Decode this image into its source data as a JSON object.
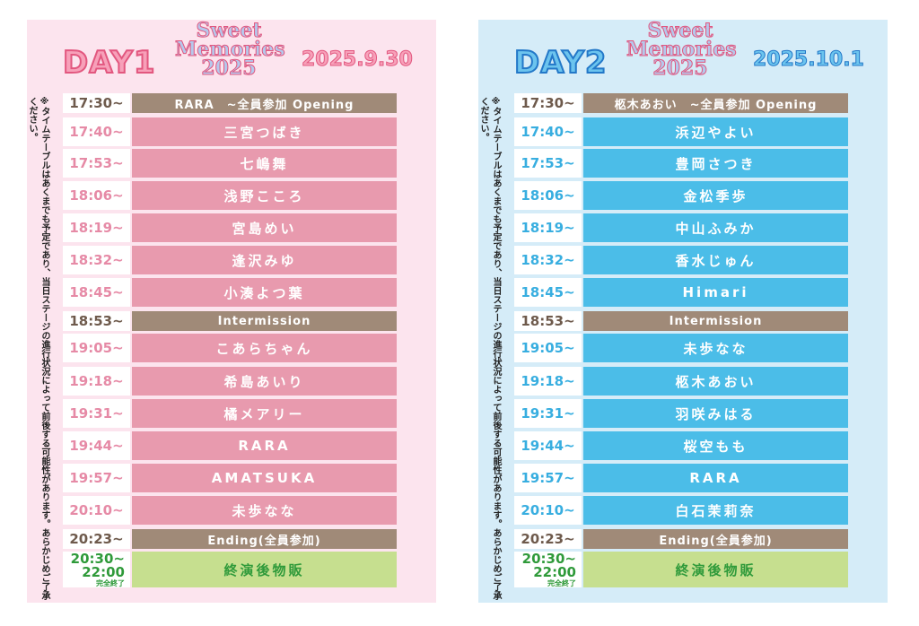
{
  "logo_text": [
    "Sweet",
    "Memories",
    "2025"
  ],
  "note": "※タイムテーブルはあくまでも予定であり、当日ステージの進行状況によって前後する可能性があります。あらかじめご了承ください。",
  "colors": {
    "day1_bg": "#fce4ee",
    "day1_row": "#e89aae",
    "day2_bg": "#d5ecf8",
    "day2_row": "#4bbde8",
    "special_row": "#a08a78",
    "merch_row": "#c6df8f"
  },
  "days": [
    {
      "day": "DAY1",
      "date": "2025.9.30",
      "rows": [
        {
          "time": "17:30~",
          "name": "RARA　~全員参加 Opening",
          "type": "brown"
        },
        {
          "time": "17:40~",
          "name": "三宮つばき",
          "type": "act"
        },
        {
          "time": "17:53~",
          "name": "七嶋舞",
          "type": "act"
        },
        {
          "time": "18:06~",
          "name": "浅野こころ",
          "type": "act"
        },
        {
          "time": "18:19~",
          "name": "宮島めい",
          "type": "act"
        },
        {
          "time": "18:32~",
          "name": "逢沢みゆ",
          "type": "act"
        },
        {
          "time": "18:45~",
          "name": "小湊よつ葉",
          "type": "act"
        },
        {
          "time": "18:53~",
          "name": "Intermission",
          "type": "brown"
        },
        {
          "time": "19:05~",
          "name": "こあらちゃん",
          "type": "act"
        },
        {
          "time": "19:18~",
          "name": "希島あいり",
          "type": "act"
        },
        {
          "time": "19:31~",
          "name": "橘メアリー",
          "type": "act"
        },
        {
          "time": "19:44~",
          "name": "RARA",
          "type": "act"
        },
        {
          "time": "19:57~",
          "name": "AMATSUKA",
          "type": "act"
        },
        {
          "time": "20:10~",
          "name": "未歩なな",
          "type": "act"
        },
        {
          "time": "20:23~",
          "name": "Ending(全員参加)",
          "type": "brown"
        },
        {
          "time": "20:30~",
          "time2": "22:00",
          "sub": "完全終了",
          "name": "終演後物販",
          "type": "green"
        }
      ]
    },
    {
      "day": "DAY2",
      "date": "2025.10.1",
      "rows": [
        {
          "time": "17:30~",
          "name": "柩木あおい　~全員参加 Opening",
          "type": "brown"
        },
        {
          "time": "17:40~",
          "name": "浜辺やよい",
          "type": "act"
        },
        {
          "time": "17:53~",
          "name": "豊岡さつき",
          "type": "act"
        },
        {
          "time": "18:06~",
          "name": "金松季歩",
          "type": "act"
        },
        {
          "time": "18:19~",
          "name": "中山ふみか",
          "type": "act"
        },
        {
          "time": "18:32~",
          "name": "香水じゅん",
          "type": "act"
        },
        {
          "time": "18:45~",
          "name": "Himari",
          "type": "act"
        },
        {
          "time": "18:53~",
          "name": "Intermission",
          "type": "brown"
        },
        {
          "time": "19:05~",
          "name": "未歩なな",
          "type": "act"
        },
        {
          "time": "19:18~",
          "name": "柩木あおい",
          "type": "act"
        },
        {
          "time": "19:31~",
          "name": "羽咲みはる",
          "type": "act"
        },
        {
          "time": "19:44~",
          "name": "桜空もも",
          "type": "act"
        },
        {
          "time": "19:57~",
          "name": "RARA",
          "type": "act"
        },
        {
          "time": "20:10~",
          "name": "白石茉莉奈",
          "type": "act"
        },
        {
          "time": "20:23~",
          "name": "Ending(全員参加)",
          "type": "brown"
        },
        {
          "time": "20:30~",
          "time2": "22:00",
          "sub": "完全終了",
          "name": "終演後物販",
          "type": "green"
        }
      ]
    }
  ]
}
